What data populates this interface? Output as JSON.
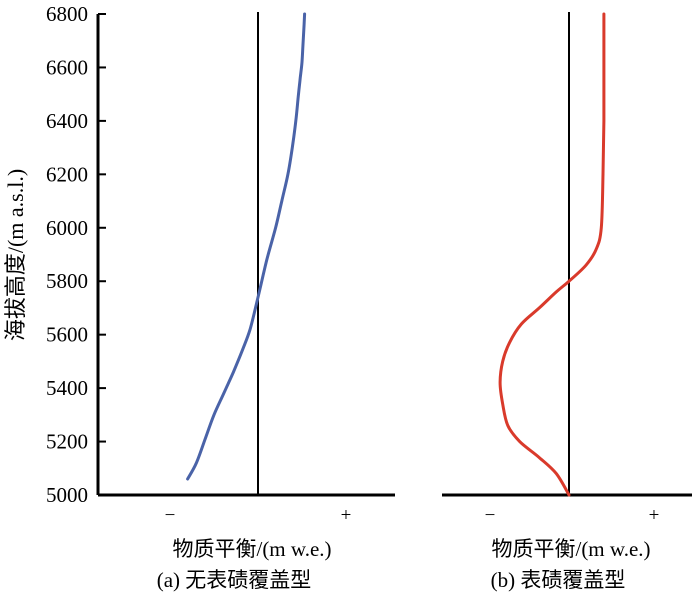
{
  "chart_data": [
    {
      "type": "line",
      "panel_caption": "(a) 无表碛覆盖型",
      "xlabel": "物质平衡/(m w.e.)",
      "ylabel": "海拔高度/(m a.s.l.)",
      "x_sign_labels": {
        "negative": "−",
        "positive": "+"
      },
      "x_values_note": "",
      "ylim": [
        5000,
        6800
      ],
      "yticks": [
        "5000",
        "5200",
        "5400",
        "5600",
        "5800",
        "6000",
        "6200",
        "6400",
        "6600",
        "6800"
      ],
      "xlim": [
        -1,
        1
      ],
      "color": "#4a63a8",
      "series": [
        {
          "x": [
            -0.8,
            -0.7,
            -0.6,
            -0.5,
            -0.39,
            -0.28,
            -0.18,
            -0.09,
            0.0,
            0.1,
            0.2,
            0.27,
            0.34,
            0.39,
            0.43,
            0.46,
            0.48,
            0.5,
            0.51,
            0.52,
            0.53
          ],
          "y": [
            5060,
            5120,
            5210,
            5300,
            5380,
            5460,
            5540,
            5620,
            5740,
            5880,
            6000,
            6100,
            6200,
            6300,
            6400,
            6500,
            6560,
            6620,
            6680,
            6740,
            6800
          ]
        }
      ]
    },
    {
      "type": "line",
      "panel_caption": "(b) 表碛覆盖型",
      "xlabel": "物质平衡/(m w.e.)",
      "x_sign_labels": {
        "negative": "−",
        "positive": "+"
      },
      "ylim": [
        5000,
        6800
      ],
      "xlim": [
        -1,
        1
      ],
      "color": "#d93a2b",
      "series": [
        {
          "x": [
            0.0,
            -0.15,
            -0.35,
            -0.58,
            -0.72,
            -0.78,
            -0.81,
            -0.78,
            -0.7,
            -0.56,
            -0.35,
            -0.15,
            0.0,
            0.2,
            0.32,
            0.38,
            0.4,
            0.41,
            0.41,
            0.41
          ],
          "y": [
            5000,
            5080,
            5140,
            5200,
            5260,
            5340,
            5420,
            5500,
            5570,
            5640,
            5700,
            5760,
            5800,
            5860,
            5920,
            6000,
            6200,
            6400,
            6600,
            6800
          ]
        }
      ]
    }
  ]
}
